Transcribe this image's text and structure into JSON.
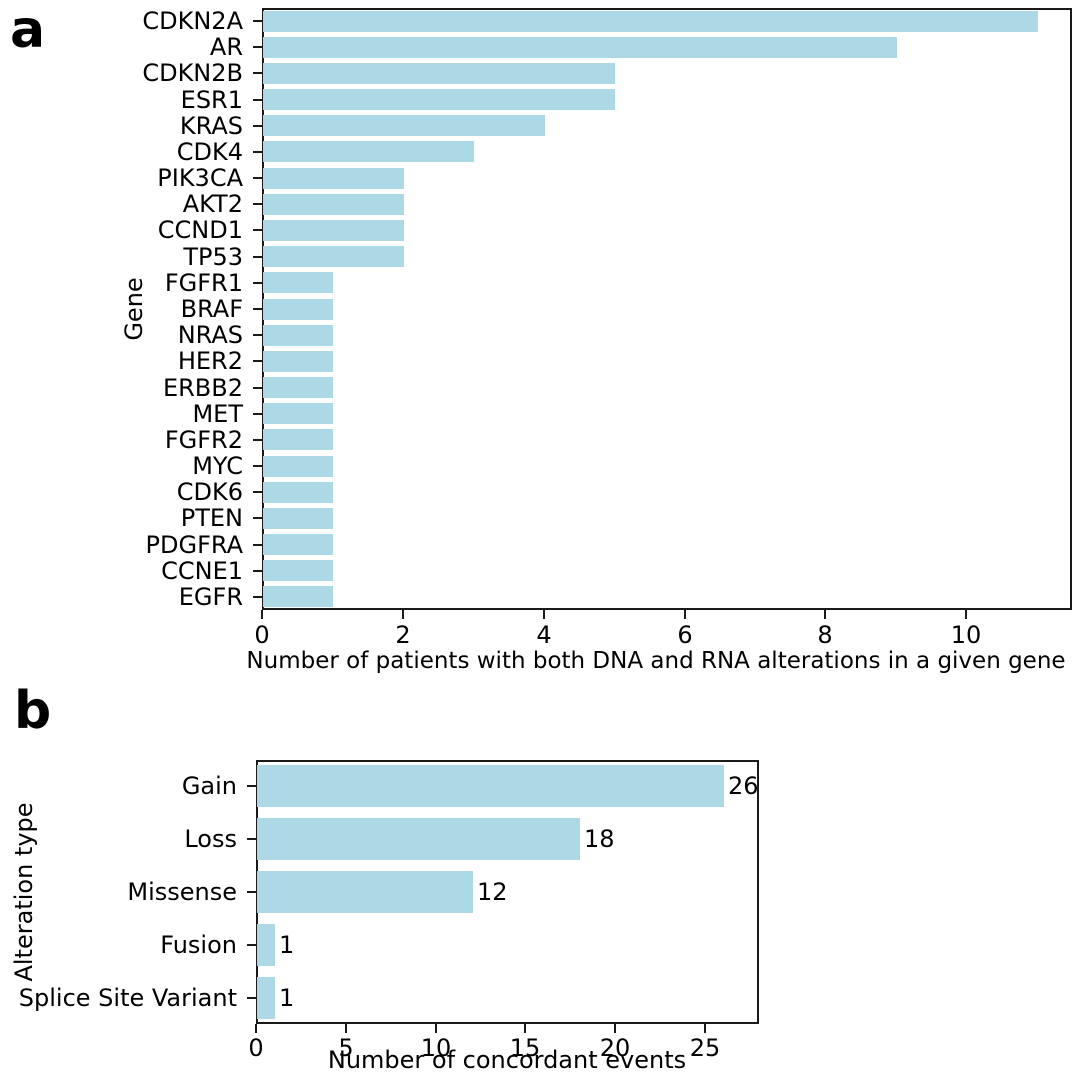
{
  "figure": {
    "panel_a_letter": "a",
    "panel_b_letter": "b",
    "bar_color": "#ADD8E6",
    "axis_color": "#1a1a1a",
    "text_color": "#000000"
  },
  "chart_data": [
    {
      "type": "bar",
      "orientation": "horizontal",
      "panel": "a",
      "title": "",
      "categories": [
        "CDKN2A",
        "AR",
        "CDKN2B",
        "ESR1",
        "KRAS",
        "CDK4",
        "PIK3CA",
        "AKT2",
        "CCND1",
        "TP53",
        "FGFR1",
        "BRAF",
        "NRAS",
        "HER2",
        "ERBB2",
        "MET",
        "FGFR2",
        "MYC",
        "CDK6",
        "PTEN",
        "PDGFRA",
        "CCNE1",
        "EGFR"
      ],
      "values": [
        11,
        9,
        5,
        5,
        4,
        3,
        2,
        2,
        2,
        2,
        1,
        1,
        1,
        1,
        1,
        1,
        1,
        1,
        1,
        1,
        1,
        1,
        1
      ],
      "xlabel": "Number of patients with both DNA and RNA alterations in a given gene",
      "ylabel": "Gene",
      "xlim": [
        0,
        11.5
      ],
      "xticks": [
        0,
        2,
        4,
        6,
        8,
        10
      ],
      "grid": false,
      "legend": false,
      "bar_color": "#ADD8E6",
      "show_value_labels": false
    },
    {
      "type": "bar",
      "orientation": "horizontal",
      "panel": "b",
      "title": "",
      "categories": [
        "Gain",
        "Loss",
        "Missense",
        "Fusion",
        "Splice Site Variant"
      ],
      "values": [
        26,
        18,
        12,
        1,
        1
      ],
      "xlabel": "Number of concordant events",
      "ylabel": "Alteration type",
      "xlim": [
        0,
        28
      ],
      "xticks": [
        0,
        5,
        10,
        15,
        20,
        25
      ],
      "grid": false,
      "legend": false,
      "bar_color": "#ADD8E6",
      "show_value_labels": true
    }
  ]
}
